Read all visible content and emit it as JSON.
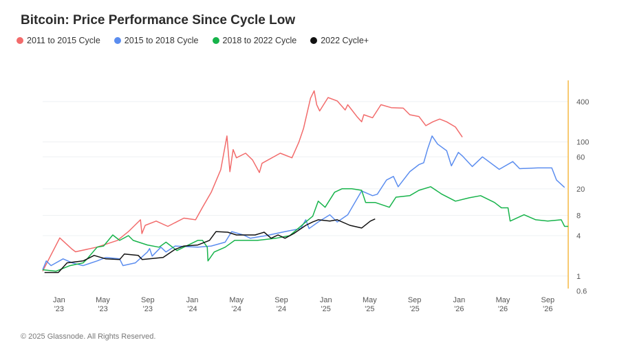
{
  "chart_data": {
    "type": "line",
    "title": "Bitcoin: Price Performance Since Cycle Low",
    "y_scale": "log",
    "ylim": [
      0.65,
      830
    ],
    "xlim": [
      "2022-11-17",
      "2026-10-27"
    ],
    "grid": true,
    "legend_position": "top-left",
    "yticks": [
      0.6,
      1,
      4,
      8,
      20,
      60,
      100,
      400
    ],
    "xticks": [
      {
        "date": "2023-01-01",
        "label": [
          "Jan",
          "'23"
        ]
      },
      {
        "date": "2023-05-01",
        "label": [
          "May",
          "'23"
        ]
      },
      {
        "date": "2023-09-01",
        "label": [
          "Sep",
          "'23"
        ]
      },
      {
        "date": "2024-01-01",
        "label": [
          "Jan",
          "'24"
        ]
      },
      {
        "date": "2024-05-01",
        "label": [
          "May",
          "'24"
        ]
      },
      {
        "date": "2024-09-01",
        "label": [
          "Sep",
          "'24"
        ]
      },
      {
        "date": "2025-01-01",
        "label": [
          "Jan",
          "'25"
        ]
      },
      {
        "date": "2025-05-01",
        "label": [
          "May",
          "'25"
        ]
      },
      {
        "date": "2025-09-01",
        "label": [
          "Sep",
          "'25"
        ]
      },
      {
        "date": "2026-01-01",
        "label": [
          "Jan",
          "'26"
        ]
      },
      {
        "date": "2026-05-01",
        "label": [
          "May",
          "'26"
        ]
      },
      {
        "date": "2026-09-01",
        "label": [
          "Sep",
          "'26"
        ]
      }
    ],
    "series": [
      {
        "name": "2011 to 2015 Cycle",
        "color": "#f26b6b",
        "points": [
          [
            "2022-11-17",
            1.18
          ],
          [
            "2023-01-03",
            3.7
          ],
          [
            "2023-02-06",
            2.5
          ],
          [
            "2023-02-15",
            2.3
          ],
          [
            "2023-04-15",
            2.7
          ],
          [
            "2023-06-10",
            3.4
          ],
          [
            "2023-07-10",
            4.6
          ],
          [
            "2023-08-12",
            6.9
          ],
          [
            "2023-08-16",
            4.3
          ],
          [
            "2023-08-25",
            5.7
          ],
          [
            "2023-09-24",
            6.6
          ],
          [
            "2023-10-26",
            5.5
          ],
          [
            "2023-12-09",
            7.3
          ],
          [
            "2024-01-10",
            6.9
          ],
          [
            "2024-01-29",
            10.6
          ],
          [
            "2024-02-22",
            17.8
          ],
          [
            "2024-03-19",
            38.6
          ],
          [
            "2024-04-05",
            123
          ],
          [
            "2024-04-13",
            36
          ],
          [
            "2024-04-22",
            77
          ],
          [
            "2024-05-01",
            58
          ],
          [
            "2024-05-26",
            68
          ],
          [
            "2024-06-14",
            54
          ],
          [
            "2024-07-03",
            35
          ],
          [
            "2024-07-10",
            48
          ],
          [
            "2024-08-29",
            68
          ],
          [
            "2024-09-30",
            58
          ],
          [
            "2024-10-19",
            99
          ],
          [
            "2024-11-01",
            160
          ],
          [
            "2024-11-20",
            450
          ],
          [
            "2024-11-30",
            580
          ],
          [
            "2024-12-07",
            360
          ],
          [
            "2024-12-15",
            290
          ],
          [
            "2025-01-07",
            460
          ],
          [
            "2025-02-01",
            410
          ],
          [
            "2025-02-23",
            300
          ],
          [
            "2025-03-02",
            360
          ],
          [
            "2025-03-27",
            240
          ],
          [
            "2025-04-09",
            200
          ],
          [
            "2025-04-15",
            255
          ],
          [
            "2025-05-09",
            230
          ],
          [
            "2025-06-01",
            360
          ],
          [
            "2025-06-29",
            325
          ],
          [
            "2025-08-01",
            320
          ],
          [
            "2025-08-19",
            255
          ],
          [
            "2025-09-13",
            240
          ],
          [
            "2025-10-02",
            175
          ],
          [
            "2025-10-21",
            200
          ],
          [
            "2025-11-09",
            220
          ],
          [
            "2025-11-28",
            200
          ],
          [
            "2025-12-22",
            167
          ],
          [
            "2026-01-10",
            118
          ]
        ]
      },
      {
        "name": "2015 to 2018 Cycle",
        "color": "#5b8def",
        "points": [
          [
            "2022-11-17",
            1.24
          ],
          [
            "2022-11-27",
            1.68
          ],
          [
            "2022-12-10",
            1.43
          ],
          [
            "2023-01-12",
            1.8
          ],
          [
            "2023-02-06",
            1.57
          ],
          [
            "2023-03-08",
            1.43
          ],
          [
            "2023-04-15",
            1.68
          ],
          [
            "2023-05-09",
            1.89
          ],
          [
            "2023-06-16",
            1.8
          ],
          [
            "2023-06-25",
            1.43
          ],
          [
            "2023-07-29",
            1.57
          ],
          [
            "2023-08-31",
            2.28
          ],
          [
            "2023-09-06",
            2.57
          ],
          [
            "2023-09-13",
            1.98
          ],
          [
            "2023-10-07",
            2.69
          ],
          [
            "2023-10-21",
            2.28
          ],
          [
            "2023-11-15",
            2.8
          ],
          [
            "2024-01-16",
            2.69
          ],
          [
            "2024-02-22",
            2.8
          ],
          [
            "2024-03-31",
            3.2
          ],
          [
            "2024-04-18",
            4.6
          ],
          [
            "2024-05-20",
            4.1
          ],
          [
            "2024-06-08",
            3.66
          ],
          [
            "2024-07-21",
            4.0
          ],
          [
            "2024-09-11",
            4.6
          ],
          [
            "2024-10-24",
            5.1
          ],
          [
            "2024-11-07",
            6.9
          ],
          [
            "2024-11-16",
            5.1
          ],
          [
            "2024-12-11",
            6.4
          ],
          [
            "2025-01-12",
            8.2
          ],
          [
            "2025-02-01",
            6.4
          ],
          [
            "2025-03-02",
            8.2
          ],
          [
            "2025-04-09",
            18.6
          ],
          [
            "2025-05-09",
            15.8
          ],
          [
            "2025-05-22",
            16.6
          ],
          [
            "2025-06-16",
            27
          ],
          [
            "2025-07-05",
            30.6
          ],
          [
            "2025-07-18",
            21.5
          ],
          [
            "2025-08-19",
            36
          ],
          [
            "2025-09-13",
            46
          ],
          [
            "2025-09-26",
            49
          ],
          [
            "2025-10-07",
            79
          ],
          [
            "2025-10-19",
            123
          ],
          [
            "2025-11-03",
            93
          ],
          [
            "2025-11-28",
            74
          ],
          [
            "2025-12-11",
            44
          ],
          [
            "2025-12-30",
            70
          ],
          [
            "2026-01-10",
            62
          ],
          [
            "2026-02-06",
            43
          ],
          [
            "2026-03-06",
            60
          ],
          [
            "2026-04-21",
            39
          ],
          [
            "2026-05-28",
            51
          ],
          [
            "2026-06-16",
            40
          ],
          [
            "2026-08-05",
            41
          ],
          [
            "2026-09-12",
            41
          ],
          [
            "2026-09-25",
            27
          ],
          [
            "2026-10-17",
            21
          ]
        ]
      },
      {
        "name": "2018 to 2022 Cycle",
        "color": "#16b34a",
        "points": [
          [
            "2022-11-17",
            1.24
          ],
          [
            "2022-12-24",
            1.18
          ],
          [
            "2023-01-31",
            1.43
          ],
          [
            "2023-03-08",
            1.57
          ],
          [
            "2023-03-19",
            1.8
          ],
          [
            "2023-04-15",
            2.69
          ],
          [
            "2023-05-03",
            2.8
          ],
          [
            "2023-05-28",
            4.1
          ],
          [
            "2023-06-16",
            3.4
          ],
          [
            "2023-07-10",
            4.0
          ],
          [
            "2023-07-23",
            3.4
          ],
          [
            "2023-08-31",
            2.9
          ],
          [
            "2023-10-02",
            2.69
          ],
          [
            "2023-10-21",
            3.2
          ],
          [
            "2023-11-20",
            2.4
          ],
          [
            "2024-01-16",
            3.4
          ],
          [
            "2024-01-29",
            3.4
          ],
          [
            "2024-02-11",
            2.69
          ],
          [
            "2024-02-13",
            1.68
          ],
          [
            "2024-03-01",
            2.28
          ],
          [
            "2024-03-31",
            2.69
          ],
          [
            "2024-04-26",
            3.4
          ],
          [
            "2024-06-27",
            3.4
          ],
          [
            "2024-08-17",
            3.66
          ],
          [
            "2024-09-24",
            4.0
          ],
          [
            "2024-11-07",
            6.4
          ],
          [
            "2024-11-26",
            7.8
          ],
          [
            "2024-12-11",
            13.1
          ],
          [
            "2024-12-30",
            10.6
          ],
          [
            "2025-01-25",
            17.8
          ],
          [
            "2025-02-14",
            20
          ],
          [
            "2025-03-13",
            20
          ],
          [
            "2025-04-09",
            19
          ],
          [
            "2025-04-20",
            12.5
          ],
          [
            "2025-05-16",
            12.5
          ],
          [
            "2025-06-24",
            10.6
          ],
          [
            "2025-07-12",
            15
          ],
          [
            "2025-08-19",
            15.8
          ],
          [
            "2025-09-13",
            19
          ],
          [
            "2025-10-15",
            21.5
          ],
          [
            "2025-11-15",
            16.6
          ],
          [
            "2025-12-22",
            13.1
          ],
          [
            "2026-01-29",
            14.7
          ],
          [
            "2026-03-01",
            15.8
          ],
          [
            "2026-04-08",
            12.5
          ],
          [
            "2026-04-27",
            10.4
          ],
          [
            "2026-05-15",
            10.4
          ],
          [
            "2026-05-21",
            6.6
          ],
          [
            "2026-06-28",
            8.2
          ],
          [
            "2026-07-30",
            6.9
          ],
          [
            "2026-09-01",
            6.6
          ],
          [
            "2026-10-08",
            6.9
          ],
          [
            "2026-10-17",
            5.5
          ],
          [
            "2026-10-27",
            5.5
          ]
        ]
      },
      {
        "name": "2022 Cycle+",
        "color": "#111111",
        "points": [
          [
            "2022-11-22",
            1.13
          ],
          [
            "2022-12-30",
            1.13
          ],
          [
            "2023-01-23",
            1.57
          ],
          [
            "2023-03-08",
            1.68
          ],
          [
            "2023-04-07",
            2.03
          ],
          [
            "2023-05-09",
            1.8
          ],
          [
            "2023-06-16",
            1.76
          ],
          [
            "2023-06-29",
            2.13
          ],
          [
            "2023-08-06",
            2.03
          ],
          [
            "2023-08-17",
            1.76
          ],
          [
            "2023-10-13",
            1.89
          ],
          [
            "2023-11-15",
            2.5
          ],
          [
            "2023-12-09",
            2.8
          ],
          [
            "2024-01-16",
            2.9
          ],
          [
            "2024-02-17",
            3.4
          ],
          [
            "2024-03-06",
            4.6
          ],
          [
            "2024-04-07",
            4.5
          ],
          [
            "2024-05-01",
            4.1
          ],
          [
            "2024-06-21",
            4.1
          ],
          [
            "2024-07-16",
            4.5
          ],
          [
            "2024-08-04",
            3.66
          ],
          [
            "2024-08-23",
            4.1
          ],
          [
            "2024-09-11",
            3.66
          ],
          [
            "2024-10-05",
            4.3
          ],
          [
            "2024-11-07",
            5.7
          ],
          [
            "2024-11-26",
            6.4
          ],
          [
            "2024-12-11",
            6.9
          ],
          [
            "2025-01-12",
            6.6
          ],
          [
            "2025-02-01",
            6.9
          ],
          [
            "2025-03-08",
            5.7
          ],
          [
            "2025-04-09",
            5.2
          ],
          [
            "2025-05-03",
            6.6
          ],
          [
            "2025-05-16",
            7.1
          ]
        ]
      }
    ]
  },
  "footer": "© 2025 Glassnode. All Rights Reserved.",
  "axis_line_color": "#f5b942"
}
